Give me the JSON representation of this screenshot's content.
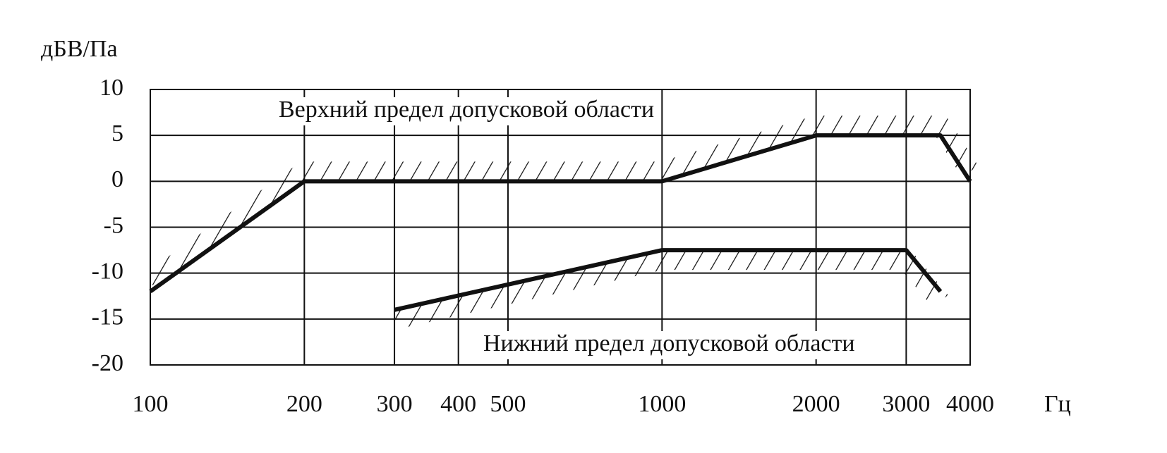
{
  "chart_data": {
    "type": "line",
    "y_label": "дБВ/Па",
    "x_label": "Гц",
    "xscale": "log",
    "xlim": [
      100,
      4000
    ],
    "xticks": [
      100,
      200,
      300,
      400,
      500,
      1000,
      2000,
      3000,
      4000
    ],
    "ylim": [
      -20,
      10
    ],
    "yticks": [
      -20,
      -15,
      -10,
      -5,
      0,
      5,
      10
    ],
    "grid": true,
    "series": [
      {
        "name": "Верхний предел допусковой области",
        "color": "#111111",
        "hatch": "up",
        "x": [
          100,
          200,
          1000,
          2000,
          3500,
          4000
        ],
        "y": [
          -12,
          0,
          0,
          5,
          5,
          0
        ]
      },
      {
        "name": "Нижний предел допусковой области",
        "color": "#111111",
        "hatch": "down",
        "x": [
          300,
          1000,
          3000,
          3500
        ],
        "y": [
          -14,
          -7.5,
          -7.5,
          -12
        ]
      }
    ]
  }
}
